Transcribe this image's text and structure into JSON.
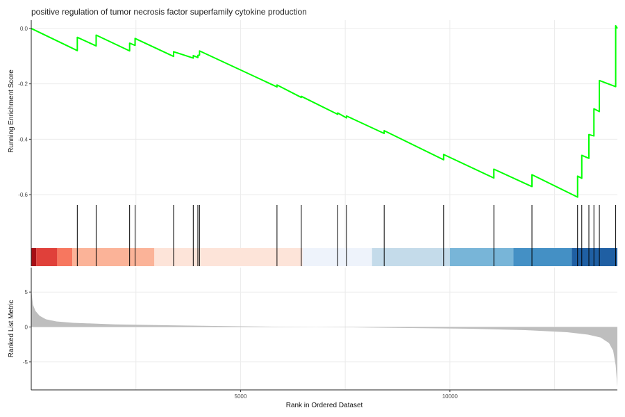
{
  "chart_data": {
    "type": "line",
    "title": "positive regulation of tumor necrosis factor superfamily cytokine production",
    "xlabel": "Rank in Ordered Dataset",
    "n_genes": 14000,
    "xlim": [
      0,
      14000
    ],
    "x_ticks": [
      {
        "value": 5000,
        "label": "5000"
      },
      {
        "value": 10000,
        "label": "10000"
      }
    ],
    "grid": true,
    "enrichment": {
      "ylabel": "Running Enrichment Score",
      "ylim": [
        -0.63,
        0.03
      ],
      "y_ticks": [
        {
          "value": 0.0,
          "label": "0.0"
        },
        {
          "value": -0.2,
          "label": "-0.2"
        },
        {
          "value": -0.4,
          "label": "-0.4"
        },
        {
          "value": -0.6,
          "label": "-0.6"
        }
      ],
      "color": "#00ff00",
      "start_score": 0.0,
      "end_score": 0.0,
      "hits": [
        {
          "rank": 1100,
          "before": -0.08,
          "after": -0.032
        },
        {
          "rank": 1550,
          "before": -0.063,
          "after": -0.024
        },
        {
          "rank": 2350,
          "before": -0.081,
          "after": -0.053
        },
        {
          "rank": 2480,
          "before": -0.061,
          "after": -0.036
        },
        {
          "rank": 3400,
          "before": -0.101,
          "after": -0.084
        },
        {
          "rank": 3870,
          "before": -0.107,
          "after": -0.098
        },
        {
          "rank": 3980,
          "before": -0.105,
          "after": -0.097
        },
        {
          "rank": 4020,
          "before": -0.096,
          "after": -0.081
        },
        {
          "rank": 5870,
          "before": -0.211,
          "after": -0.204
        },
        {
          "rank": 6450,
          "before": -0.249,
          "after": -0.245
        },
        {
          "rank": 7320,
          "before": -0.31,
          "after": -0.305
        },
        {
          "rank": 7530,
          "before": -0.323,
          "after": -0.316
        },
        {
          "rank": 8430,
          "before": -0.379,
          "after": -0.369
        },
        {
          "rank": 9850,
          "before": -0.474,
          "after": -0.455
        },
        {
          "rank": 11050,
          "before": -0.54,
          "after": -0.508
        },
        {
          "rank": 11960,
          "before": -0.571,
          "after": -0.528
        },
        {
          "rank": 13050,
          "before": -0.609,
          "after": -0.533
        },
        {
          "rank": 13150,
          "before": -0.541,
          "after": -0.458
        },
        {
          "rank": 13320,
          "before": -0.469,
          "after": -0.383
        },
        {
          "rank": 13440,
          "before": -0.388,
          "after": -0.29
        },
        {
          "rank": 13570,
          "before": -0.3,
          "after": -0.188
        },
        {
          "rank": 13960,
          "before": -0.21,
          "after": 0.01
        }
      ]
    },
    "rank_heatmap": {
      "segments": [
        {
          "start": 0,
          "end": 120,
          "color": "#a50f15"
        },
        {
          "start": 120,
          "end": 620,
          "color": "#e0403a"
        },
        {
          "start": 620,
          "end": 980,
          "color": "#f7775f"
        },
        {
          "start": 980,
          "end": 2940,
          "color": "#fbb398"
        },
        {
          "start": 2940,
          "end": 6480,
          "color": "#fde4d9"
        },
        {
          "start": 6480,
          "end": 8140,
          "color": "#eef3fb"
        },
        {
          "start": 8140,
          "end": 10000,
          "color": "#c4dbea"
        },
        {
          "start": 10000,
          "end": 11520,
          "color": "#78b5d8"
        },
        {
          "start": 11520,
          "end": 12910,
          "color": "#4490c5"
        },
        {
          "start": 12910,
          "end": 14000,
          "color": "#1f5fa3"
        }
      ]
    },
    "ranked_metric": {
      "ylabel": "Ranked List Metric",
      "ylim": [
        -9,
        8.5
      ],
      "y_ticks": [
        {
          "value": 5,
          "label": "5"
        },
        {
          "value": 0,
          "label": "0"
        },
        {
          "value": -5,
          "label": "-5"
        }
      ],
      "fill": "#bebebe",
      "curve": [
        [
          0,
          5.3
        ],
        [
          40,
          3.2
        ],
        [
          100,
          2.3
        ],
        [
          200,
          1.6
        ],
        [
          350,
          1.1
        ],
        [
          600,
          0.8
        ],
        [
          1000,
          0.6
        ],
        [
          2000,
          0.37
        ],
        [
          3500,
          0.22
        ],
        [
          5000,
          0.1
        ],
        [
          6000,
          0.04
        ],
        [
          6800,
          0.0
        ],
        [
          7600,
          -0.05
        ],
        [
          9000,
          -0.15
        ],
        [
          10500,
          -0.25
        ],
        [
          11800,
          -0.45
        ],
        [
          12800,
          -0.75
        ],
        [
          13300,
          -1.1
        ],
        [
          13600,
          -1.5
        ],
        [
          13800,
          -2.3
        ],
        [
          13900,
          -3.4
        ],
        [
          13960,
          -5.5
        ],
        [
          14000,
          -8.6
        ]
      ]
    }
  }
}
